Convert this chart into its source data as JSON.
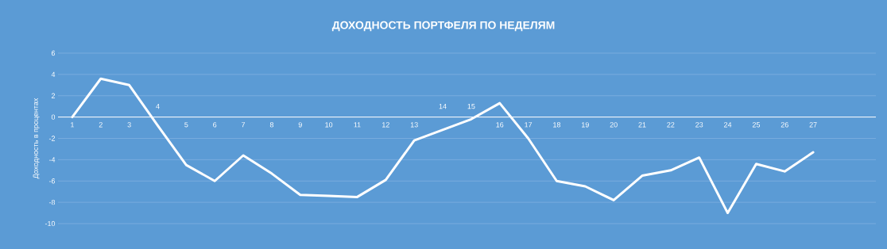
{
  "chart_data": {
    "type": "line",
    "title": "ДОХОДНОСТЬ ПОРТФЕЛЯ ПО НЕДЕЛЯМ",
    "ylabel": "Доходность в процентах",
    "categories": [
      "1",
      "2",
      "3",
      "4",
      "5",
      "6",
      "7",
      "8",
      "9",
      "10",
      "11",
      "12",
      "13",
      "14",
      "15",
      "16",
      "17",
      "18",
      "19",
      "20",
      "21",
      "22",
      "23",
      "24",
      "25",
      "26",
      "27"
    ],
    "values": [
      0,
      3.6,
      3.0,
      -0.8,
      -4.5,
      -6.0,
      -3.6,
      -5.3,
      -7.3,
      -7.4,
      -7.5,
      -5.9,
      -2.2,
      -1.2,
      -0.2,
      1.3,
      -2.0,
      -6.0,
      -6.5,
      -7.8,
      -5.5,
      -5.0,
      -3.8,
      -9.0,
      -4.4,
      -5.1,
      -3.3
    ],
    "color": "#ffffff",
    "ylim": [
      -10,
      6
    ],
    "yticks": [
      -10,
      -8,
      -6,
      -4,
      -2,
      0,
      2,
      4,
      6
    ],
    "grid": "y",
    "marker": "none",
    "line_style": "solid"
  }
}
